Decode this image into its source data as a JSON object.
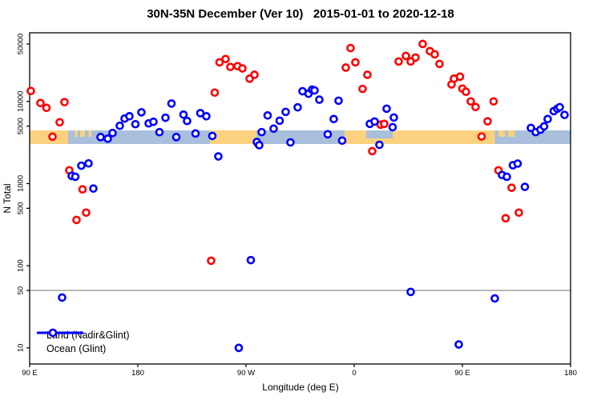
{
  "title": "30N-35N December (Ver 10)   2015-01-01 to 2020-12-18",
  "x_axis": {
    "label": "Longitude (deg E)",
    "ticks": [
      {
        "lon": 90,
        "label": "90 E"
      },
      {
        "lon": 180,
        "label": "180"
      },
      {
        "lon": 270,
        "label": "90 W"
      },
      {
        "lon": 360,
        "label": "0"
      },
      {
        "lon": 450,
        "label": "90 E"
      },
      {
        "lon": 540,
        "label": "180"
      }
    ]
  },
  "y_axis": {
    "label": "N Total",
    "ticks": [
      50000,
      10000,
      5000,
      1000,
      500,
      100,
      50,
      10
    ]
  },
  "ref_line": {
    "value": 50,
    "color": "#808080"
  },
  "legend": {
    "items": [
      {
        "label": "Land (Nadir&Glint)",
        "color": "#FF0000"
      },
      {
        "label": "Ocean (Glint)",
        "color": "#0000FF"
      }
    ]
  },
  "map_strip": {
    "ocean_color": "#A9BFDC",
    "land_color": "#FAD27F",
    "land_segments": [
      [
        90,
        122
      ],
      [
        240,
        279
      ],
      [
        352,
        477
      ]
    ],
    "islands": [
      [
        127.5,
        130
      ],
      [
        132,
        136
      ],
      [
        139,
        141.5
      ],
      [
        480,
        485.5
      ],
      [
        488,
        493.5
      ]
    ],
    "ocean_notches": [
      [
        370,
        392
      ]
    ]
  },
  "chart_data": {
    "type": "scatter",
    "title": "30N-35N December (Ver 10)   2015-01-01 to 2020-12-18",
    "xlabel": "Longitude (deg E)",
    "ylabel": "N Total",
    "xlim": [
      90,
      540
    ],
    "x_note": "longitude wraps: 90E..180..90W..0..90E..180",
    "ylim": [
      6.5,
      68000
    ],
    "yscale": "log",
    "grid": false,
    "legend_position": "bottom-left",
    "series": [
      {
        "name": "Land (Nadir&Glint)",
        "color": "#FF0000",
        "points": [
          [
            91,
            13400
          ],
          [
            99,
            9550
          ],
          [
            104,
            8350
          ],
          [
            109,
            3720
          ],
          [
            115,
            5570
          ],
          [
            119,
            9800
          ],
          [
            123,
            1450
          ],
          [
            129,
            361
          ],
          [
            134,
            850
          ],
          [
            137,
            443
          ],
          [
            241,
            115
          ],
          [
            244,
            12800
          ],
          [
            248,
            29900
          ],
          [
            253,
            32800
          ],
          [
            257,
            26300
          ],
          [
            263,
            26900
          ],
          [
            267,
            25200
          ],
          [
            273,
            18900
          ],
          [
            277,
            21100
          ],
          [
            280,
            3040
          ],
          [
            353,
            25800
          ],
          [
            357,
            44600
          ],
          [
            361,
            29900
          ],
          [
            367,
            14200
          ],
          [
            371,
            21100
          ],
          [
            375,
            2480
          ],
          [
            382,
            5210
          ],
          [
            385,
            5330
          ],
          [
            397,
            30600
          ],
          [
            403,
            35800
          ],
          [
            407,
            30600
          ],
          [
            411,
            34200
          ],
          [
            417,
            50000
          ],
          [
            423,
            40900
          ],
          [
            427,
            37400
          ],
          [
            431,
            28600
          ],
          [
            441,
            16100
          ],
          [
            443,
            18900
          ],
          [
            448,
            20000
          ],
          [
            450,
            14300
          ],
          [
            453,
            13100
          ],
          [
            457,
            10000
          ],
          [
            461,
            8550
          ],
          [
            466,
            3740
          ],
          [
            471,
            5720
          ],
          [
            476,
            10000
          ],
          [
            480,
            1450
          ],
          [
            486,
            378
          ],
          [
            491,
            890
          ],
          [
            497,
            443
          ]
        ]
      },
      {
        "name": "Ocean (Glint)",
        "color": "#0000FF",
        "points": [
          [
            117,
            41
          ],
          [
            125,
            1240
          ],
          [
            128,
            1210
          ],
          [
            133,
            1650
          ],
          [
            139,
            1760
          ],
          [
            143,
            870
          ],
          [
            149,
            3680
          ],
          [
            155,
            3520
          ],
          [
            159,
            4130
          ],
          [
            165,
            5050
          ],
          [
            169,
            6180
          ],
          [
            173,
            6600
          ],
          [
            178,
            5280
          ],
          [
            183,
            7370
          ],
          [
            189,
            5400
          ],
          [
            193,
            5650
          ],
          [
            198,
            4220
          ],
          [
            203,
            6330
          ],
          [
            208,
            9420
          ],
          [
            212,
            3680
          ],
          [
            218,
            6900
          ],
          [
            221,
            5780
          ],
          [
            228,
            4070
          ],
          [
            232,
            7200
          ],
          [
            237,
            6600
          ],
          [
            242,
            3800
          ],
          [
            247,
            2140
          ],
          [
            264,
            10
          ],
          [
            274,
            117
          ],
          [
            279,
            3210
          ],
          [
            281,
            2930
          ],
          [
            283,
            4230
          ],
          [
            288,
            6750
          ],
          [
            293,
            4660
          ],
          [
            298,
            5820
          ],
          [
            303,
            7450
          ],
          [
            307,
            3170
          ],
          [
            313,
            8470
          ],
          [
            317,
            13300
          ],
          [
            322,
            12400
          ],
          [
            325,
            13900
          ],
          [
            327,
            13600
          ],
          [
            331,
            10500
          ],
          [
            338,
            3980
          ],
          [
            343,
            6100
          ],
          [
            347,
            10200
          ],
          [
            350,
            3330
          ],
          [
            373,
            5330
          ],
          [
            377,
            5690
          ],
          [
            381,
            2960
          ],
          [
            387,
            8150
          ],
          [
            392,
            4860
          ],
          [
            393,
            6370
          ],
          [
            407,
            48
          ],
          [
            447,
            11
          ],
          [
            477,
            40
          ],
          [
            483,
            1270
          ],
          [
            487,
            1210
          ],
          [
            492,
            1670
          ],
          [
            496,
            1750
          ],
          [
            502,
            912
          ],
          [
            507,
            4760
          ],
          [
            511,
            4230
          ],
          [
            515,
            4530
          ],
          [
            518,
            4970
          ],
          [
            521,
            6100
          ],
          [
            526,
            7620
          ],
          [
            529,
            8150
          ],
          [
            531,
            8500
          ],
          [
            535,
            6850
          ]
        ]
      }
    ]
  }
}
